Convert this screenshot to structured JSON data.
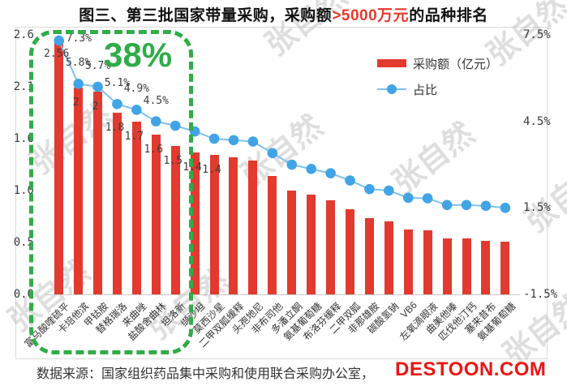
{
  "title": {
    "prefix": "图三、第三批国家带量采购，采购额",
    "highlight": ">5000万元",
    "suffix": "的品种排名",
    "highlight_color": "#e8392b"
  },
  "legend": [
    {
      "label": "采购额（亿元）",
      "type": "bar",
      "color": "#e23a2e"
    },
    {
      "label": "占比",
      "type": "line",
      "color": "#41a4e6",
      "line_color": "#7cc2ee"
    }
  ],
  "watermark": {
    "text": "张自然"
  },
  "source": {
    "text": "数据来源：国家组织药品集中采购和使用联合采购办公室，",
    "logo": "DESTOON.COM"
  },
  "axes": {
    "left_ticks": [
      "2.6",
      "2.1",
      "1.6",
      "1.0",
      "0.5",
      "0.0"
    ],
    "left_tick_values": [
      2.6,
      2.08,
      1.56,
      1.04,
      0.52,
      0
    ],
    "right_ticks": [
      "7.5%",
      "4.5%",
      "1.5%",
      "-1.5%"
    ],
    "right_tick_values": [
      7.5,
      4.5,
      1.5,
      -1.5
    ]
  },
  "chart_data": {
    "type": "bar",
    "title": "图三、第三批国家带量采购，采购额>5000万元的品种排名",
    "categories": [
      "富马酸喹硫平",
      "卡培他滨",
      "甲钴胺",
      "替格瑞洛",
      "来曲唑",
      "盐酸舍曲林",
      "坦洛新",
      "缬沙坦",
      "莫西沙星",
      "二甲双胍缓释",
      "头孢地尼",
      "非布司他",
      "多潘立酮",
      "氨基葡萄糖",
      "布洛芬缓释",
      "二甲双胍",
      "非那雄胺",
      "碳酸氢钠",
      "VB6",
      "左氧滴眼液",
      "曲美他嗪",
      "匹伐他汀钙",
      "塞来昔布",
      "氨基葡萄糖"
    ],
    "series": [
      {
        "name": "采购额（亿元）",
        "type": "bar",
        "color": "#e23a2e",
        "values": [
          2.56,
          2.07,
          2.03,
          1.82,
          1.73,
          1.6,
          1.49,
          1.42,
          1.4,
          1.37,
          1.34,
          1.19,
          1.04,
          1.0,
          0.94,
          0.85,
          0.76,
          0.73,
          0.65,
          0.64,
          0.56,
          0.56,
          0.54,
          0.53
        ],
        "labels": [
          "2.56",
          "2",
          "2",
          "1.8",
          "1.7",
          "1.6",
          "1.5",
          "1.4",
          "1.4",
          null,
          null,
          null,
          null,
          null,
          null,
          null,
          null,
          null,
          null,
          null,
          null,
          null,
          null,
          null
        ]
      },
      {
        "name": "占比",
        "type": "line",
        "color": "#41a4e6",
        "line_color": "#7cc2ee",
        "values": [
          7.3,
          5.8,
          5.7,
          5.1,
          4.9,
          4.5,
          4.35,
          4.15,
          3.9,
          3.85,
          3.8,
          3.4,
          3.0,
          2.85,
          2.7,
          2.45,
          2.15,
          2.1,
          1.85,
          1.83,
          1.6,
          1.6,
          1.57,
          1.5
        ],
        "labels": [
          "7.3%",
          "5.8%",
          "5.7%",
          "5.1%",
          "4.9%",
          "4.5%",
          null,
          null,
          null,
          null,
          null,
          null,
          null,
          null,
          null,
          null,
          null,
          null,
          null,
          null,
          null,
          null,
          null,
          null
        ]
      }
    ],
    "ylim_left": [
      0,
      2.6
    ],
    "ylim_right": [
      -1.5,
      7.5
    ],
    "grid": false,
    "legend_position": "top-right",
    "highlight": {
      "label": "38%",
      "color": "#30ac48",
      "covers_categories": [
        "富马酸喹硫平",
        "坦洛新"
      ]
    }
  }
}
